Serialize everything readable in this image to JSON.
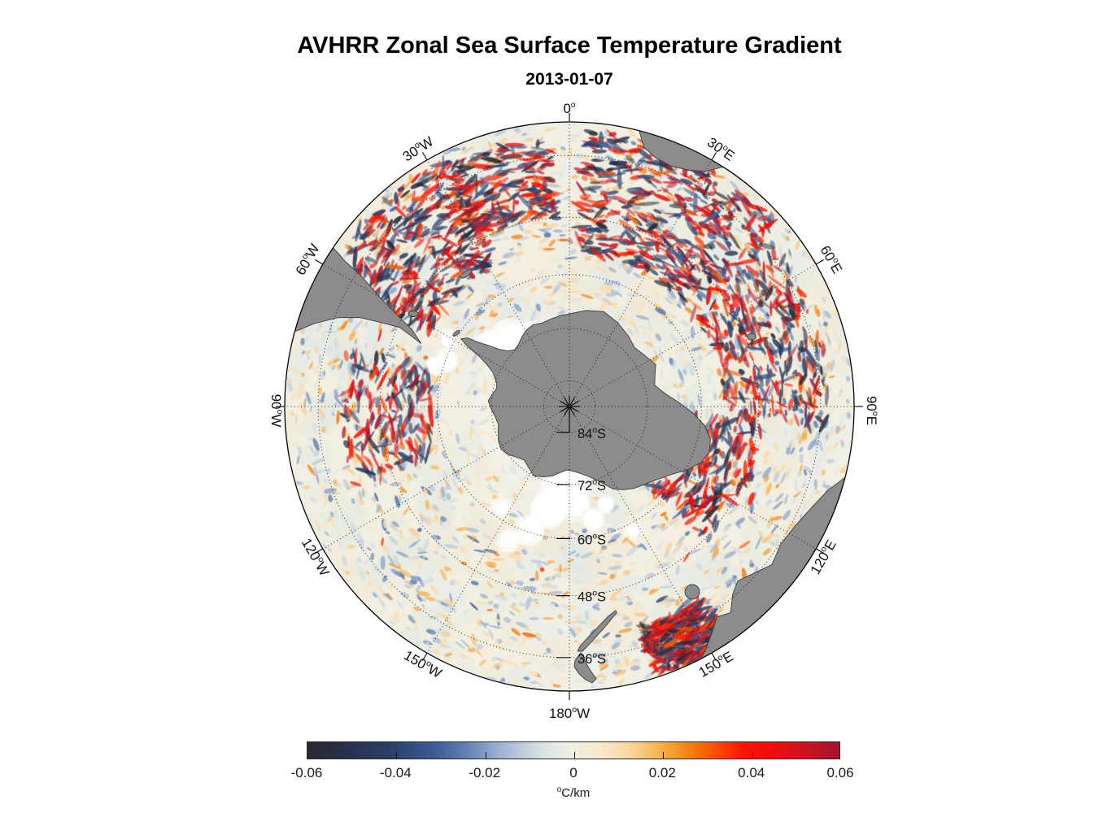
{
  "figure": {
    "title": "AVHRR Zonal Sea Surface Temperature Gradient",
    "subtitle": "2013-01-07"
  },
  "chart_data": {
    "type": "heatmap",
    "projection": "south polar stereographic",
    "pole": "south",
    "outer_latitude_deg": -30,
    "variable": "zonal sea surface temperature gradient",
    "units": "°C/km",
    "map": {
      "land_color": "#8c8c8c",
      "land_outline_color": "#3c3c3c",
      "ocean_base_color": "#f1efe2",
      "sea_ice_color": "#ffffff",
      "land_features": [
        "Antarctica",
        "Antarctic Peninsula",
        "South America",
        "Falkland Islands",
        "South Georgia",
        "Africa",
        "Kerguelen Islands",
        "Australia",
        "Tasmania",
        "New Zealand"
      ],
      "high_gradient_regions": [
        "Agulhas Return Current (20°E–90°E)",
        "Brazil–Malvinas Confluence (~55°W)",
        "East Australian Current extension (~150°E)",
        "Antarctic Circumpolar Current band (45°S–60°S)"
      ]
    },
    "graticule": {
      "style": "dotted",
      "lon_step_deg": 30,
      "lat_circles_deg": [
        -84,
        -72,
        -60,
        -48,
        -36
      ]
    },
    "longitude_labels": [
      {
        "text": "0°",
        "az": 0,
        "rot": 0
      },
      {
        "text": "30°E",
        "az": 30,
        "rot": 35
      },
      {
        "text": "60°E",
        "az": 60,
        "rot": 60
      },
      {
        "text": "90°E",
        "az": 90,
        "rot": 90
      },
      {
        "text": "120°E",
        "az": 120,
        "rot": -60
      },
      {
        "text": "150°E",
        "az": 150,
        "rot": -30
      },
      {
        "text": "180°W",
        "az": 180,
        "rot": 0
      },
      {
        "text": "150°W",
        "az": 210,
        "rot": 30
      },
      {
        "text": "120°W",
        "az": 240,
        "rot": 60
      },
      {
        "text": "90°W",
        "az": 270,
        "rot": 90
      },
      {
        "text": "60°W",
        "az": 300,
        "rot": -60
      },
      {
        "text": "30°W",
        "az": 330,
        "rot": -33
      }
    ],
    "latitude_labels": [
      {
        "text": "84°S",
        "lat": -84
      },
      {
        "text": "72°S",
        "lat": -72
      },
      {
        "text": "60°S",
        "lat": -60
      },
      {
        "text": "48°S",
        "lat": -48
      },
      {
        "text": "36°S",
        "lat": -36
      }
    ],
    "colorbar": {
      "min": -0.06,
      "max": 0.06,
      "tick_step": 0.02,
      "tick_labels": [
        "-0.06",
        "-0.04",
        "-0.02",
        "0",
        "0.02",
        "0.04",
        "0.06"
      ],
      "label": "°C/km",
      "gradient_stops": [
        {
          "pos": 0.0,
          "color": "#29292e"
        },
        {
          "pos": 0.07,
          "color": "#27304b"
        },
        {
          "pos": 0.16,
          "color": "#2b406b"
        },
        {
          "pos": 0.24,
          "color": "#3d5c98"
        },
        {
          "pos": 0.3,
          "color": "#6381b4"
        },
        {
          "pos": 0.35,
          "color": "#93aacd"
        },
        {
          "pos": 0.4,
          "color": "#bccbdd"
        },
        {
          "pos": 0.45,
          "color": "#dde6e3"
        },
        {
          "pos": 0.5,
          "color": "#f2f0e2"
        },
        {
          "pos": 0.55,
          "color": "#f8e8cd"
        },
        {
          "pos": 0.6,
          "color": "#fbd9a4"
        },
        {
          "pos": 0.65,
          "color": "#f7bc62"
        },
        {
          "pos": 0.7,
          "color": "#f19220"
        },
        {
          "pos": 0.74,
          "color": "#f66c00"
        },
        {
          "pos": 0.78,
          "color": "#fc4100"
        },
        {
          "pos": 0.82,
          "color": "#ff1400"
        },
        {
          "pos": 0.87,
          "color": "#ef0e0d"
        },
        {
          "pos": 0.93,
          "color": "#cf1220"
        },
        {
          "pos": 1.0,
          "color": "#a3152c"
        }
      ]
    }
  }
}
